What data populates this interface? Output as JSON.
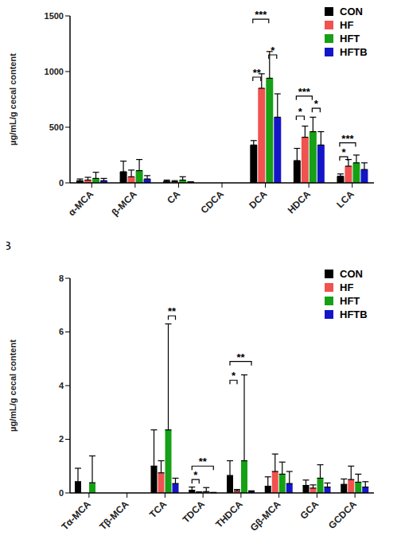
{
  "chart_data": [
    {
      "type": "bar",
      "y_label": "µg/mL/g cecal content",
      "grid": false,
      "legend": "upper right",
      "categories": [
        "α-MCA",
        "β-MCA",
        "CA",
        "CDCA",
        "DCA",
        "HDCA",
        "LCA"
      ],
      "ylim": [
        0,
        1500
      ],
      "yticks": [
        0,
        500,
        1000,
        1500
      ],
      "series": [
        {
          "name": "CON",
          "color": "#000000",
          "values": [
            20,
            100,
            15,
            0,
            340,
            200,
            60
          ],
          "errors": [
            15,
            95,
            10,
            0,
            40,
            110,
            20
          ]
        },
        {
          "name": "HF",
          "color": "#f0524f",
          "values": [
            25,
            55,
            10,
            0,
            850,
            410,
            150
          ],
          "errors": [
            25,
            60,
            10,
            0,
            130,
            100,
            60
          ]
        },
        {
          "name": "HFT",
          "color": "#16a016",
          "values": [
            40,
            110,
            25,
            0,
            940,
            460,
            180
          ],
          "errors": [
            55,
            100,
            30,
            0,
            240,
            130,
            70
          ]
        },
        {
          "name": "HFTB",
          "color": "#1515c8",
          "values": [
            20,
            35,
            5,
            0,
            590,
            340,
            120
          ],
          "errors": [
            20,
            30,
            5,
            0,
            210,
            120,
            60
          ]
        }
      ],
      "annotations": [
        {
          "category": "DCA",
          "from": "CON",
          "to": "HF",
          "y": 950,
          "label": "**"
        },
        {
          "category": "DCA",
          "from": "CON",
          "to": "HFT",
          "y": 1470,
          "label": "***"
        },
        {
          "category": "DCA",
          "from": "HFT",
          "to": "HFTB",
          "y": 1150,
          "label": "*"
        },
        {
          "category": "HDCA",
          "from": "CON",
          "to": "HF",
          "y": 600,
          "label": "*"
        },
        {
          "category": "HDCA",
          "from": "CON",
          "to": "HFT",
          "y": 780,
          "label": "***"
        },
        {
          "category": "HDCA",
          "from": "HFT",
          "to": "HFTB",
          "y": 670,
          "label": "*"
        },
        {
          "category": "LCA",
          "from": "CON",
          "to": "HF",
          "y": 235,
          "label": "*"
        },
        {
          "category": "LCA",
          "from": "CON",
          "to": "HFT",
          "y": 360,
          "label": "***"
        }
      ]
    },
    {
      "type": "bar",
      "title": "B",
      "y_label": "µg/mL/g cecal content",
      "grid": false,
      "legend": "upper right",
      "categories": [
        "Tα-MCA",
        "Tβ-MCA",
        "TCA",
        "TDCA",
        "THDCA",
        "Gβ-MCA",
        "GCA",
        "GCDCA"
      ],
      "ylim": [
        0,
        8
      ],
      "yticks": [
        0,
        2,
        4,
        6,
        8
      ],
      "series": [
        {
          "name": "CON",
          "color": "#000000",
          "values": [
            0.42,
            0,
            1.0,
            0.1,
            0.65,
            0.25,
            0.28,
            0.32
          ],
          "errors": [
            0.5,
            0,
            1.35,
            0.12,
            0.55,
            0.35,
            0.2,
            0.2
          ]
        },
        {
          "name": "HF",
          "color": "#f0524f",
          "values": [
            0,
            0,
            0.75,
            0.02,
            0.08,
            0.8,
            0.18,
            0.5
          ],
          "errors": [
            0,
            0,
            0.45,
            0.02,
            0.05,
            0.65,
            0.12,
            0.5
          ]
        },
        {
          "name": "HFT",
          "color": "#16a016",
          "values": [
            0.38,
            0,
            2.35,
            0.05,
            1.2,
            0.7,
            0.55,
            0.4
          ],
          "errors": [
            1.0,
            0,
            3.95,
            0.15,
            3.2,
            0.45,
            0.5,
            0.3
          ]
        },
        {
          "name": "HFTB",
          "color": "#1515c8",
          "values": [
            0,
            0,
            0.35,
            0.01,
            0.05,
            0.35,
            0.22,
            0.22
          ],
          "errors": [
            0,
            0,
            0.2,
            0.01,
            0.03,
            0.45,
            0.15,
            0.2
          ]
        }
      ],
      "annotations": [
        {
          "category": "TCA",
          "from": "HFT",
          "to": "HFTB",
          "y": 6.6,
          "label": "**"
        },
        {
          "category": "TDCA",
          "from": "CON",
          "to": "HF",
          "y": 0.5,
          "label": "*"
        },
        {
          "category": "TDCA",
          "from": "CON",
          "to": "HFTB",
          "y": 1.0,
          "label": "**"
        },
        {
          "category": "THDCA",
          "from": "CON",
          "to": "HF",
          "y": 4.2,
          "label": "*"
        },
        {
          "category": "THDCA",
          "from": "CON",
          "to": "HFTB",
          "y": 4.9,
          "label": "**"
        }
      ]
    }
  ]
}
